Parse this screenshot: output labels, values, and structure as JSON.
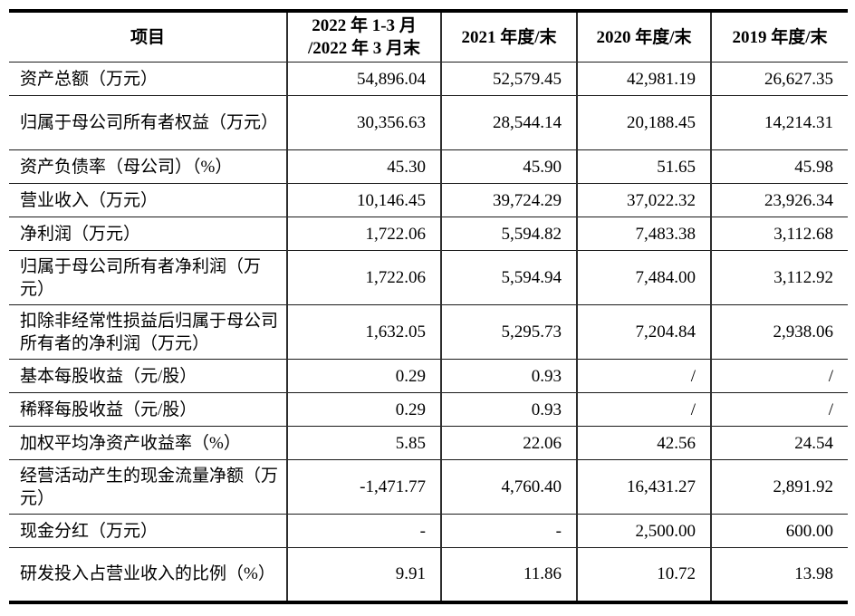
{
  "table": {
    "columns": [
      "项目",
      "2022 年 1-3 月\n/2022 年 3 月末",
      "2021 年度/末",
      "2020 年度/末",
      "2019 年度/末"
    ],
    "rows": [
      {
        "label": "资产总额（万元）",
        "values": [
          "54,896.04",
          "52,579.45",
          "42,981.19",
          "26,627.35"
        ]
      },
      {
        "label": "归属于母公司所有者权益（万元）",
        "values": [
          "30,356.63",
          "28,544.14",
          "20,188.45",
          "14,214.31"
        ]
      },
      {
        "label": "资产负债率（母公司）（%）",
        "values": [
          "45.30",
          "45.90",
          "51.65",
          "45.98"
        ]
      },
      {
        "label": "营业收入（万元）",
        "values": [
          "10,146.45",
          "39,724.29",
          "37,022.32",
          "23,926.34"
        ]
      },
      {
        "label": "净利润（万元）",
        "values": [
          "1,722.06",
          "5,594.82",
          "7,483.38",
          "3,112.68"
        ]
      },
      {
        "label": "归属于母公司所有者净利润（万元）",
        "values": [
          "1,722.06",
          "5,594.94",
          "7,484.00",
          "3,112.92"
        ]
      },
      {
        "label": "扣除非经常性损益后归属于母公司所有者的净利润（万元）",
        "values": [
          "1,632.05",
          "5,295.73",
          "7,204.84",
          "2,938.06"
        ]
      },
      {
        "label": "基本每股收益（元/股）",
        "values": [
          "0.29",
          "0.93",
          "/",
          "/"
        ]
      },
      {
        "label": "稀释每股收益（元/股）",
        "values": [
          "0.29",
          "0.93",
          "/",
          "/"
        ]
      },
      {
        "label": "加权平均净资产收益率（%）",
        "values": [
          "5.85",
          "22.06",
          "42.56",
          "24.54"
        ]
      },
      {
        "label": "经营活动产生的现金流量净额（万元）",
        "values": [
          "-1,471.77",
          "4,760.40",
          "16,431.27",
          "2,891.92"
        ]
      },
      {
        "label": "现金分红（万元）",
        "values": [
          "-",
          "-",
          "2,500.00",
          "600.00"
        ]
      },
      {
        "label": "研发投入占营业收入的比例（%）",
        "values": [
          "9.91",
          "11.86",
          "10.72",
          "13.98"
        ]
      }
    ]
  }
}
